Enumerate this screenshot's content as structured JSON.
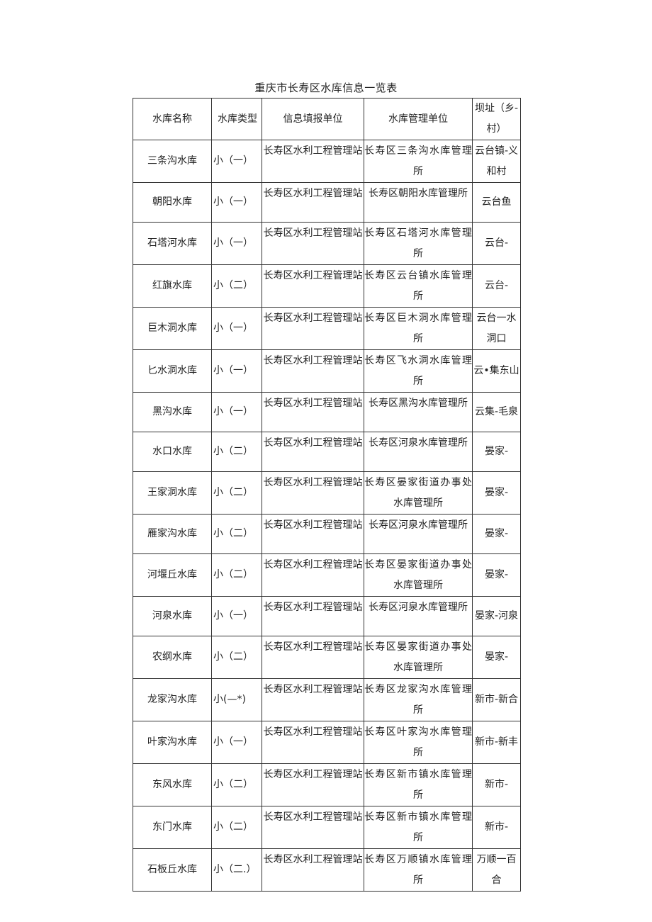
{
  "title": "重庆市长寿区水库信息一览表",
  "headers": [
    "水库名称",
    "水库类型",
    "信息填报单位",
    "水库管理单位",
    "坝址（乡-村）"
  ],
  "rows": [
    [
      "三条沟水库",
      "小（一）",
      "长寿区水利工程管理站",
      "长寿区三条沟水库管理所",
      "云台镇-义和村"
    ],
    [
      "朝阳水库",
      "小（一）",
      "长寿区水利工程管理站",
      "长寿区朝阳水库管理所",
      "云台鱼"
    ],
    [
      "石塔河水库",
      "小（一）",
      "长寿区水利工程管理站",
      "长寿区石塔河水库管理所",
      "云台-"
    ],
    [
      "红旗水库",
      "小（二）",
      "长寿区水利工程管理站",
      "长寿区云台镇水库管理所",
      "云台-"
    ],
    [
      "巨木洞水库",
      "小（一）",
      "长寿区水利工程管理站",
      "长寿区巨木洞水库管理所",
      "云台一水洞口"
    ],
    [
      "匕水洞水库",
      "小（一）",
      "长寿区水利工程管理站",
      "长寿区飞水洞水库管理所",
      "云•集东山"
    ],
    [
      "黑沟水库",
      "小（一）",
      "长寿区水利工程管理站",
      "长寿区黑沟水库管理所",
      "云集-毛泉"
    ],
    [
      "水口水库",
      "小（二）",
      "长寿区水利工程管理站",
      "长寿区河泉水库管理所",
      "晏家-"
    ],
    [
      "王家洞水库",
      "小（二）",
      "长寿区水利工程管理站",
      "长寿区晏家街道办事处水库管理所",
      "晏家-"
    ],
    [
      "雁家沟水库",
      "小（二）",
      "长寿区水利工程管理站",
      "长寿区河泉水库管理所",
      "晏家-"
    ],
    [
      "河堰丘水库",
      "小（二）",
      "长寿区水利工程管理站",
      "长寿区晏家街道办事处水库管理所",
      "晏家-"
    ],
    [
      "河泉水库",
      "小（一）",
      "长寿区水利工程管理站",
      "长寿区河泉水库管理所",
      "晏家-河泉"
    ],
    [
      "农纲水库",
      "小（二）",
      "长寿区水利工程管理站",
      "长寿区晏家街道办事处水库管理所",
      "晏家-"
    ],
    [
      "龙家沟水库",
      "小(—*)",
      "长寿区水利工程管理站",
      "长寿区龙家沟水库管理所",
      "新市-新合"
    ],
    [
      "叶家沟水库",
      "小（一）",
      "长寿区水利工程管理站",
      "长寿区叶家沟水库管理所",
      "新市-新丰"
    ],
    [
      "东风水库",
      "小（二）",
      "长寿区水利工程管理站",
      "长寿区新市镇水库管理所",
      "新市-"
    ],
    [
      "东门水库",
      "小（二）",
      "长寿区水利工程管理站",
      "长寿区新市镇水库管理所",
      "新市-"
    ],
    [
      "石板丘水库",
      "小（二.）",
      "长寿区水利工程管理站",
      "长寿区万顺镇水库管理所",
      "万顺一百合"
    ]
  ]
}
